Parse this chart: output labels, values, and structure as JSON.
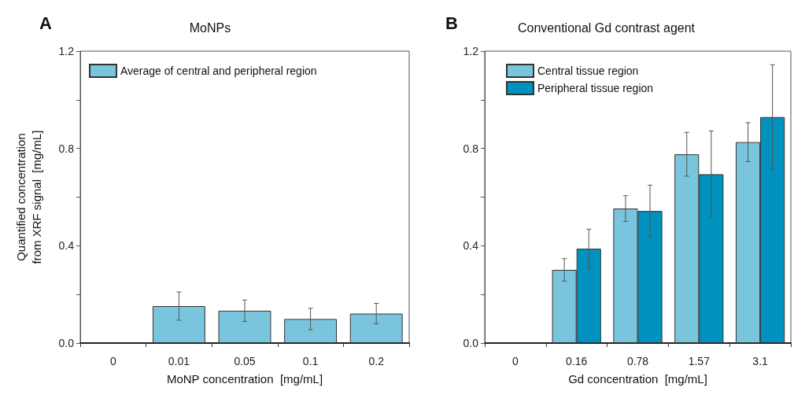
{
  "chart_data": [
    {
      "type": "bar",
      "title": "MoNPs",
      "annotations": [
        "A"
      ],
      "xlabel": "MoNP concentration  [mg/mL]",
      "ylabel": "Quantified concentration\nfrom XRF signal  [mg/mL]",
      "categories": [
        "0",
        "0.01",
        "0.05",
        "0.1",
        "0.2"
      ],
      "series": [
        {
          "name": "Average of central and peripheral region",
          "color": "#7ac5de",
          "values": [
            0,
            0.152,
            0.133,
            0.099,
            0.121
          ],
          "errors": [
            null,
            0.058,
            0.044,
            0.044,
            0.042
          ]
        }
      ],
      "ylim": [
        0,
        1.2
      ],
      "yticks": [
        {
          "value": 0,
          "label": "0.0"
        },
        {
          "value": 0.2,
          "label": null
        },
        0.4,
        {
          "value": 0.6,
          "label": null
        },
        0.8,
        {
          "value": 1.0,
          "label": null
        },
        1.2
      ],
      "legend": "top left",
      "grid": false
    },
    {
      "type": "bar",
      "title": "Conventional Gd contrast agent",
      "annotations": [
        "B"
      ],
      "xlabel": "Gd concentration  [mg/mL]",
      "categories": [
        "0",
        "0.16",
        "0.78",
        "1.57",
        "3.1"
      ],
      "series": [
        {
          "name": "Central tissue region",
          "color": "#7ac5de",
          "values": [
            0,
            0.301,
            0.553,
            0.776,
            0.826
          ],
          "errors": [
            null,
            0.046,
            0.053,
            0.09,
            0.08
          ]
        },
        {
          "name": "Peripheral tissue region",
          "color": "#0092bf",
          "values": [
            0,
            0.388,
            0.543,
            0.694,
            0.929
          ],
          "errors": [
            null,
            0.08,
            0.106,
            0.178,
            0.215
          ]
        }
      ],
      "ylim": [
        0,
        1.2
      ],
      "yticks": [
        {
          "value": 0,
          "label": "0.0"
        },
        {
          "value": 0.2,
          "label": null
        },
        0.4,
        {
          "value": 0.6,
          "label": null
        },
        0.8,
        {
          "value": 1.0,
          "label": null
        },
        1.2
      ],
      "legend": "top left",
      "grid": false
    }
  ]
}
